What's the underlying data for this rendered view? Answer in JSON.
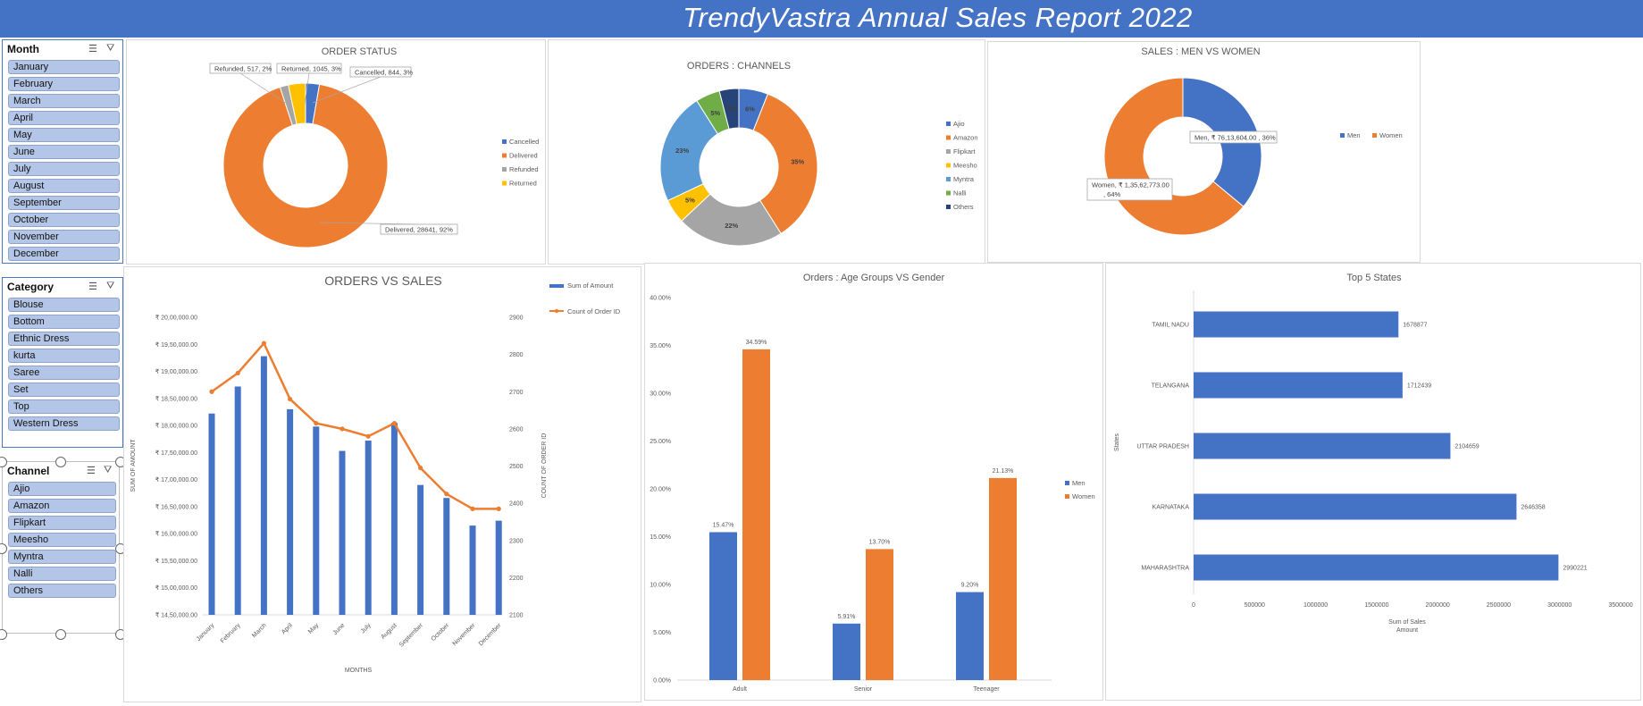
{
  "report": {
    "title": "TrendyVastra Annual Sales Report 2022"
  },
  "slicers": {
    "month": {
      "title": "Month",
      "items": [
        "January",
        "February",
        "March",
        "April",
        "May",
        "June",
        "July",
        "August",
        "September",
        "October",
        "November",
        "December"
      ]
    },
    "category": {
      "title": "Category",
      "items": [
        "Blouse",
        "Bottom",
        "Ethnic Dress",
        "kurta",
        "Saree",
        "Set",
        "Top",
        "Western Dress"
      ]
    },
    "channel": {
      "title": "Channel",
      "items": [
        "Ajio",
        "Amazon",
        "Flipkart",
        "Meesho",
        "Myntra",
        "Nalli",
        "Others"
      ]
    }
  },
  "colors": {
    "blue": "#4472c4",
    "orange": "#ed7d31",
    "gray": "#a5a5a5",
    "yellow": "#ffc000",
    "lightblue": "#5b9bd5",
    "green": "#70ad47",
    "navy": "#264478"
  },
  "chart_data": [
    {
      "id": "order_status",
      "type": "pie",
      "title": "ORDER STATUS",
      "donut": true,
      "legend": "right",
      "slices": [
        {
          "name": "Cancelled",
          "value": 844,
          "pct": "3%",
          "label": "Cancelled, 844, 3%",
          "color": "#4472c4"
        },
        {
          "name": "Delivered",
          "value": 28641,
          "pct": "92%",
          "label": "Delivered, 28641, 92%",
          "color": "#ed7d31"
        },
        {
          "name": "Refunded",
          "value": 517,
          "pct": "2%",
          "label": "Refunded, 517, 2%",
          "color": "#a5a5a5"
        },
        {
          "name": "Returned",
          "value": 1045,
          "pct": "3%",
          "label": "Returned, 1045, 3%",
          "color": "#ffc000"
        }
      ]
    },
    {
      "id": "channels",
      "type": "pie",
      "title": "ORDERS : CHANNELS",
      "donut": true,
      "legend": "right",
      "slices": [
        {
          "name": "Ajio",
          "value": 6,
          "label": "6%",
          "color": "#4472c4"
        },
        {
          "name": "Amazon",
          "value": 35,
          "label": "35%",
          "color": "#ed7d31"
        },
        {
          "name": "Flipkart",
          "value": 22,
          "label": "22%",
          "color": "#a5a5a5"
        },
        {
          "name": "Meesho",
          "value": 5,
          "label": "5%",
          "color": "#ffc000"
        },
        {
          "name": "Myntra",
          "value": 23,
          "label": "23%",
          "color": "#5b9bd5"
        },
        {
          "name": "Nalli",
          "value": 5,
          "label": "5%",
          "color": "#70ad47"
        },
        {
          "name": "Others",
          "value": 4,
          "label": "4%",
          "color": "#264478"
        }
      ]
    },
    {
      "id": "men_women",
      "type": "pie",
      "title": "SALES : MEN VS WOMEN",
      "donut": true,
      "legend": "right",
      "slices": [
        {
          "name": "Men",
          "value": 36,
          "label": "Men, ₹ 76,13,604.00 , 36%",
          "color": "#4472c4"
        },
        {
          "name": "Women",
          "value": 64,
          "label": "Women, ₹ 1,35,62,773.00 , 64%",
          "color": "#ed7d31"
        }
      ]
    },
    {
      "id": "orders_vs_sales",
      "type": "bar",
      "combo": "bar+line",
      "title": "ORDERS VS SALES",
      "xlabel": "MONTHS",
      "ylabel": "SUM OF AMOUNT",
      "y2label": "COUNT OF ORDER ID",
      "categories": [
        "January",
        "February",
        "March",
        "April",
        "May",
        "June",
        "July",
        "August",
        "September",
        "October",
        "November",
        "December"
      ],
      "series": [
        {
          "name": "Sum of Amount",
          "axis": "left",
          "type": "bar",
          "color": "#4472c4",
          "values": [
            1822000,
            1872000,
            1928000,
            1830000,
            1798000,
            1753000,
            1772000,
            1805000,
            1690000,
            1666000,
            1615000,
            1624000
          ]
        },
        {
          "name": "Count of Order ID",
          "axis": "right",
          "type": "line",
          "color": "#ed7d31",
          "values": [
            2700,
            2750,
            2830,
            2680,
            2615,
            2600,
            2580,
            2615,
            2495,
            2425,
            2385,
            2385
          ]
        }
      ],
      "ylim": [
        1450000,
        2000000
      ],
      "y_ticks_values": [
        1450000,
        1500000,
        1550000,
        1600000,
        1650000,
        1700000,
        1750000,
        1800000,
        1850000,
        1900000,
        1950000,
        2000000
      ],
      "y_ticks": [
        "₹ 14,50,000.00",
        "₹ 15,00,000.00",
        "₹ 15,50,000.00",
        "₹ 16,00,000.00",
        "₹ 16,50,000.00",
        "₹ 17,00,000.00",
        "₹ 17,50,000.00",
        "₹ 18,00,000.00",
        "₹ 18,50,000.00",
        "₹ 19,00,000.00",
        "₹ 19,50,000.00",
        "₹ 20,00,000.00"
      ],
      "y2lim": [
        2100,
        2900
      ],
      "y2_ticks": [
        "2100",
        "2200",
        "2300",
        "2400",
        "2500",
        "2600",
        "2700",
        "2800",
        "2900"
      ],
      "legend": "top-right"
    },
    {
      "id": "age_gender",
      "type": "bar",
      "title": "Orders :  Age Groups VS Gender",
      "categories": [
        "Adult",
        "Senior",
        "Teenager"
      ],
      "series": [
        {
          "name": "Men",
          "color": "#4472c4",
          "values": [
            15.47,
            5.91,
            9.2
          ],
          "labels": [
            "15.47%",
            "5.91%",
            "9.20%"
          ]
        },
        {
          "name": "Women",
          "color": "#ed7d31",
          "values": [
            34.59,
            13.7,
            21.13
          ],
          "labels": [
            "34.59%",
            "13.70%",
            "21.13%"
          ]
        }
      ],
      "ylim": [
        0,
        40
      ],
      "y_ticks": [
        "0.00%",
        "5.00%",
        "10.00%",
        "15.00%",
        "20.00%",
        "25.00%",
        "30.00%",
        "35.00%",
        "40.00%"
      ],
      "legend": "right"
    },
    {
      "id": "top_states",
      "type": "bar",
      "orientation": "horizontal",
      "title": "Top 5 States",
      "ylabel": "States",
      "xlabel": "Sum of Sales Amount",
      "xlabel_lines": [
        "Sum of Sales",
        "Amount"
      ],
      "categories": [
        "TAMIL NADU",
        "TELANGANA",
        "UTTAR PRADESH",
        "KARNATAKA",
        "MAHARASHTRA"
      ],
      "values": [
        1678877,
        1712439,
        2104659,
        2646358,
        2990221
      ],
      "labels": [
        "1678877",
        "1712439",
        "2104659",
        "2646358",
        "2990221"
      ],
      "color": "#4472c4",
      "xlim": [
        0,
        3500000
      ],
      "x_ticks": [
        "0",
        "500000",
        "1000000",
        "1500000",
        "2000000",
        "2500000",
        "3000000",
        "3500000"
      ]
    }
  ]
}
